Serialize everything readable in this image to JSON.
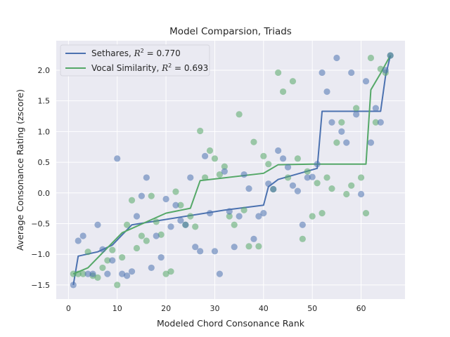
{
  "chart_data": {
    "type": "scatter",
    "title": "Model Comparsion, Triads",
    "xlabel": "Modeled Chord Consonance Rank",
    "ylabel": "Average Consonance Rating (zscore)",
    "xlim": [
      -2.5,
      69
    ],
    "ylim": [
      -1.73,
      2.48
    ],
    "xticks": [
      0,
      10,
      20,
      30,
      40,
      50,
      60
    ],
    "yticks": [
      -1.5,
      -1.0,
      -0.5,
      0.0,
      0.5,
      1.0,
      1.5,
      2.0
    ],
    "ytick_labels": [
      "−1.5",
      "−1.0",
      "−0.5",
      "0.0",
      "0.5",
      "1.0",
      "1.5",
      "2.0"
    ],
    "grid": true,
    "legend_position": "top-left",
    "series": [
      {
        "name": "Sethares, R² = 0.770",
        "legend_label": "Sethares, ",
        "legend_r2": "0.770",
        "color": "#4c72b0",
        "points": [
          [
            1,
            -1.5
          ],
          [
            2,
            -0.78
          ],
          [
            3,
            -0.7
          ],
          [
            4,
            -1.32
          ],
          [
            5,
            -1.32
          ],
          [
            6,
            -0.52
          ],
          [
            7,
            -0.92
          ],
          [
            8,
            -1.32
          ],
          [
            9,
            -1.1
          ],
          [
            10,
            0.56
          ],
          [
            11,
            -1.32
          ],
          [
            12,
            -1.35
          ],
          [
            13,
            -1.28
          ],
          [
            14,
            -0.38
          ],
          [
            15,
            -0.05
          ],
          [
            16,
            0.25
          ],
          [
            17,
            -1.22
          ],
          [
            18,
            -0.7
          ],
          [
            19,
            -1.05
          ],
          [
            20,
            -0.1
          ],
          [
            21,
            -0.55
          ],
          [
            22,
            -0.2
          ],
          [
            23,
            -0.45
          ],
          [
            24,
            -0.52
          ],
          [
            25,
            0.25
          ],
          [
            26,
            -0.88
          ],
          [
            27,
            -0.95
          ],
          [
            28,
            0.6
          ],
          [
            29,
            -0.33
          ],
          [
            30,
            -0.95
          ],
          [
            31,
            -1.32
          ],
          [
            32,
            0.35
          ],
          [
            33,
            -0.3
          ],
          [
            34,
            -0.88
          ],
          [
            35,
            -0.38
          ],
          [
            36,
            0.3
          ],
          [
            37,
            0.07
          ],
          [
            38,
            -0.75
          ],
          [
            39,
            -0.38
          ],
          [
            40,
            -0.33
          ],
          [
            41,
            0.15
          ],
          [
            42,
            0.06
          ],
          [
            43,
            0.69
          ],
          [
            44,
            0.56
          ],
          [
            45,
            0.42
          ],
          [
            46,
            0.12
          ],
          [
            47,
            0.03
          ],
          [
            48,
            -0.52
          ],
          [
            49,
            0.25
          ],
          [
            50,
            0.26
          ],
          [
            51,
            0.47
          ],
          [
            52,
            1.96
          ],
          [
            53,
            1.65
          ],
          [
            54,
            1.15
          ],
          [
            55,
            2.2
          ],
          [
            56,
            1.0
          ],
          [
            57,
            0.82
          ],
          [
            58,
            1.96
          ],
          [
            59,
            1.28
          ],
          [
            60,
            -0.02
          ],
          [
            61,
            1.82
          ],
          [
            62,
            0.82
          ],
          [
            63,
            1.38
          ],
          [
            64,
            1.15
          ],
          [
            65,
            2.0
          ],
          [
            66,
            2.24
          ]
        ]
      },
      {
        "name": "Vocal Similarity, R² = 0.693",
        "legend_label": "Vocal Similarity, ",
        "legend_r2": "0.693",
        "color": "#55a868",
        "points": [
          [
            1,
            -1.32
          ],
          [
            2,
            -1.32
          ],
          [
            3,
            -1.32
          ],
          [
            4,
            -0.96
          ],
          [
            5,
            -1.35
          ],
          [
            6,
            -1.38
          ],
          [
            7,
            -1.22
          ],
          [
            8,
            -1.1
          ],
          [
            9,
            -0.93
          ],
          [
            10,
            -1.5
          ],
          [
            11,
            -1.05
          ],
          [
            12,
            -0.52
          ],
          [
            13,
            -0.12
          ],
          [
            14,
            -0.9
          ],
          [
            15,
            -0.7
          ],
          [
            16,
            -0.78
          ],
          [
            17,
            -0.05
          ],
          [
            18,
            -0.47
          ],
          [
            19,
            -0.68
          ],
          [
            20,
            -1.32
          ],
          [
            21,
            -1.28
          ],
          [
            22,
            0.02
          ],
          [
            23,
            -0.2
          ],
          [
            24,
            -0.52
          ],
          [
            25,
            -0.38
          ],
          [
            26,
            -0.55
          ],
          [
            27,
            1.01
          ],
          [
            28,
            0.25
          ],
          [
            29,
            0.69
          ],
          [
            30,
            0.56
          ],
          [
            31,
            0.3
          ],
          [
            32,
            0.43
          ],
          [
            33,
            -0.38
          ],
          [
            34,
            -0.52
          ],
          [
            35,
            1.28
          ],
          [
            36,
            -0.28
          ],
          [
            37,
            -0.87
          ],
          [
            38,
            0.83
          ],
          [
            39,
            -0.87
          ],
          [
            40,
            0.6
          ],
          [
            41,
            0.47
          ],
          [
            42,
            0.06
          ],
          [
            43,
            1.96
          ],
          [
            44,
            1.65
          ],
          [
            45,
            0.25
          ],
          [
            46,
            1.82
          ],
          [
            47,
            0.56
          ],
          [
            48,
            -0.75
          ],
          [
            49,
            0.35
          ],
          [
            50,
            -0.38
          ],
          [
            51,
            0.16
          ],
          [
            52,
            -0.33
          ],
          [
            53,
            0.25
          ],
          [
            54,
            0.07
          ],
          [
            55,
            0.82
          ],
          [
            56,
            1.15
          ],
          [
            57,
            -0.02
          ],
          [
            58,
            0.12
          ],
          [
            59,
            1.38
          ],
          [
            60,
            0.25
          ],
          [
            61,
            -0.33
          ],
          [
            62,
            2.2
          ],
          [
            63,
            1.15
          ],
          [
            64,
            2.02
          ],
          [
            65,
            1.96
          ],
          [
            66,
            2.24
          ]
        ]
      }
    ],
    "fit_lines": [
      {
        "name": "Sethares",
        "color": "#4c72b0",
        "steps": [
          [
            1,
            -1.5
          ],
          [
            2,
            -1.03
          ],
          [
            6,
            -0.96
          ],
          [
            9,
            -0.85
          ],
          [
            13,
            -0.52
          ],
          [
            32,
            -0.28
          ],
          [
            40,
            -0.2
          ],
          [
            41,
            0.1
          ],
          [
            43,
            0.22
          ],
          [
            51,
            0.4
          ],
          [
            52,
            1.33
          ],
          [
            64,
            1.33
          ],
          [
            65,
            1.9
          ],
          [
            66,
            2.24
          ]
        ]
      },
      {
        "name": "Vocal Similarity",
        "color": "#55a868",
        "steps": [
          [
            1,
            -1.32
          ],
          [
            4,
            -1.22
          ],
          [
            11,
            -0.65
          ],
          [
            20,
            -0.33
          ],
          [
            25,
            -0.25
          ],
          [
            27,
            0.2
          ],
          [
            40,
            0.32
          ],
          [
            43,
            0.46
          ],
          [
            50,
            0.47
          ],
          [
            61,
            0.47
          ],
          [
            62,
            1.68
          ],
          [
            64,
            1.95
          ],
          [
            66,
            2.24
          ]
        ]
      }
    ]
  }
}
